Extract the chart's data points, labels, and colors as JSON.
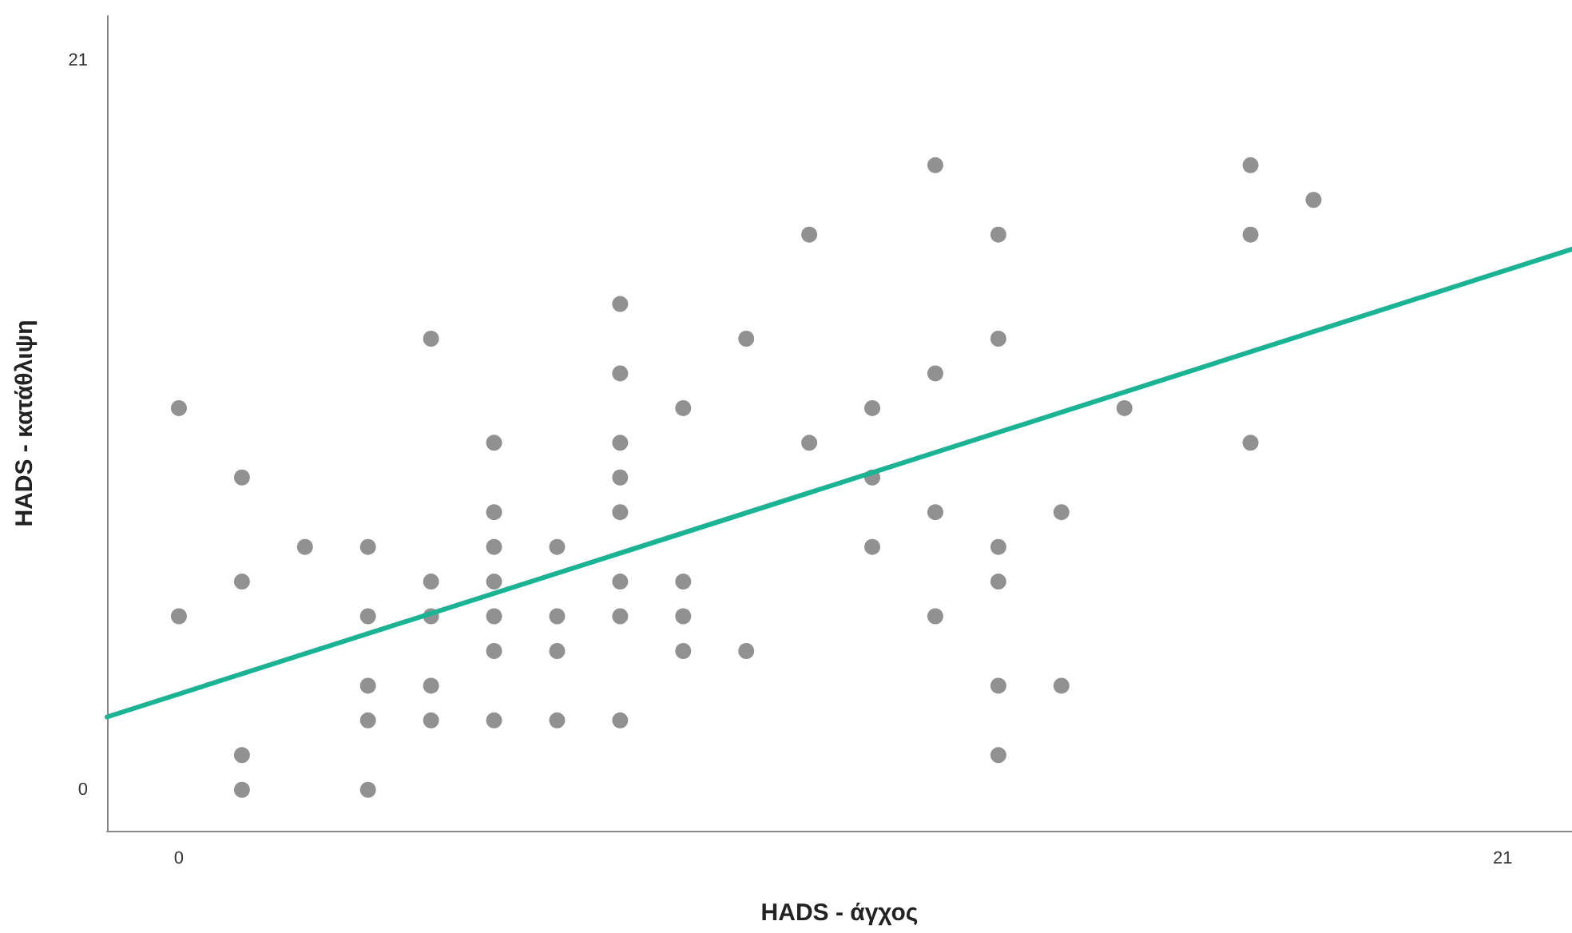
{
  "chart_data": {
    "type": "scatter",
    "xlabel": "HADS - άγχος",
    "ylabel": "HADS - κατάθλιψη",
    "xlim": [
      -1.14,
      22.1
    ],
    "ylim": [
      -1.18,
      22.3
    ],
    "xticks": [
      0,
      21
    ],
    "yticks": [
      0,
      21
    ],
    "grid": false,
    "marker": "circle",
    "series": [
      {
        "color": "#767676",
        "x": [
          0,
          0,
          1,
          1,
          1,
          1,
          2,
          3,
          3,
          3,
          3,
          3,
          4,
          4,
          4,
          4,
          4,
          5,
          5,
          5,
          5,
          5,
          5,
          5,
          6,
          6,
          6,
          6,
          7,
          7,
          7,
          7,
          7,
          7,
          7,
          7,
          8,
          8,
          8,
          8,
          9,
          9,
          10,
          10,
          11,
          11,
          11,
          12,
          12,
          12,
          12,
          13,
          13,
          13,
          13,
          13,
          13,
          14,
          14,
          15,
          17,
          17,
          17,
          18
        ],
        "values": [
          11,
          5,
          9,
          6,
          1,
          0,
          7,
          7,
          5,
          3,
          2,
          0,
          13,
          6,
          5,
          3,
          2,
          10,
          8,
          7,
          6,
          5,
          4,
          2,
          7,
          5,
          4,
          2,
          14,
          12,
          10,
          9,
          8,
          6,
          5,
          2,
          11,
          6,
          5,
          4,
          13,
          4,
          16,
          10,
          11,
          9,
          7,
          18,
          12,
          8,
          5,
          16,
          13,
          7,
          6,
          3,
          1,
          8,
          3,
          11,
          18,
          16,
          10,
          17
        ]
      },
      {
        "type": "line",
        "color": "#1ab394",
        "x": [
          -1.14,
          22.1
        ],
        "values": [
          2.1,
          15.58
        ],
        "marker": "none",
        "line_style": "solid"
      }
    ]
  }
}
